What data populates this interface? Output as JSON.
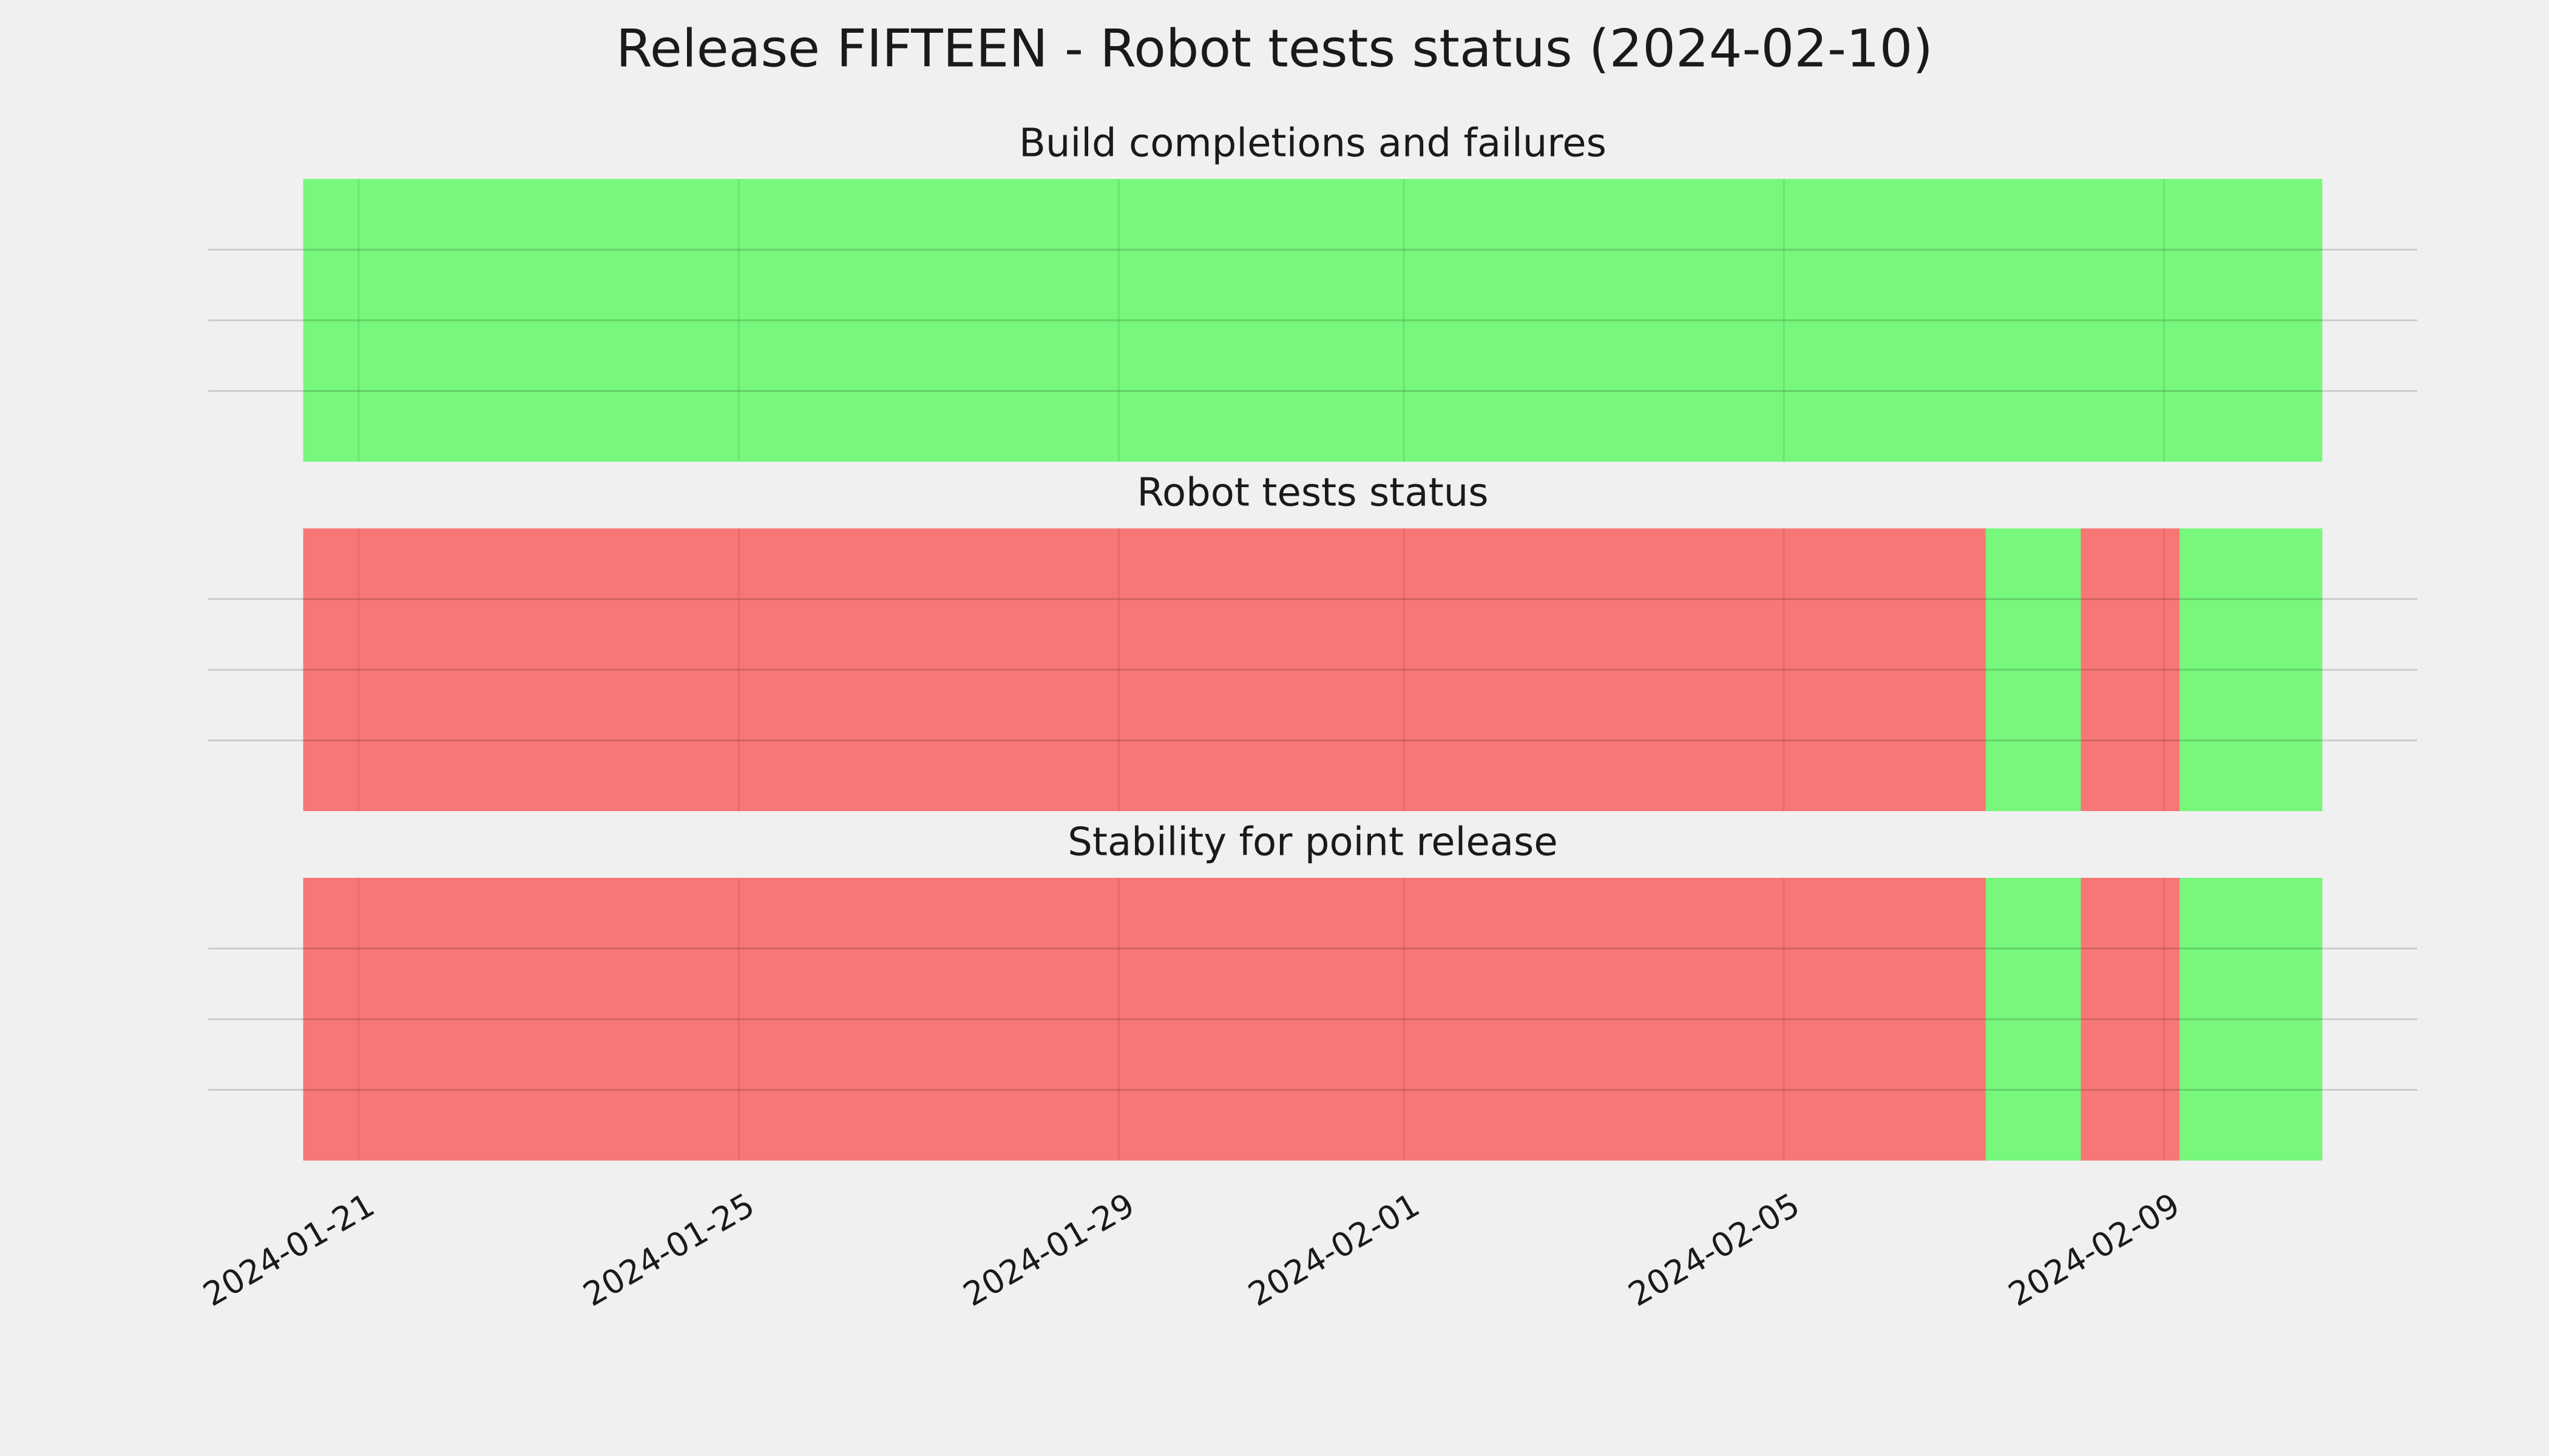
{
  "chart_data": {
    "type": "timeline",
    "title": "Release FIFTEEN - Robot tests status (2024-02-10)",
    "xlim": [
      "2024-01-19T10:00",
      "2024-02-11T16:00"
    ],
    "xticks": [
      "2024-01-21",
      "2024-01-25",
      "2024-01-29",
      "2024-02-01",
      "2024-02-05",
      "2024-02-09"
    ],
    "ylim": [
      0,
      1
    ],
    "yticks": [
      0.25,
      0.5,
      0.75
    ],
    "grid": true,
    "panels": [
      {
        "title": "Build completions and failures",
        "segments": [
          {
            "start": "2024-01-20T10:00",
            "end": "2024-02-10T16:00",
            "color": "#77f77b"
          }
        ]
      },
      {
        "title": "Robot tests status",
        "segments": [
          {
            "start": "2024-01-20T10:00",
            "end": "2024-02-07T03:00",
            "color": "#f77776"
          },
          {
            "start": "2024-02-07T03:00",
            "end": "2024-02-08T03:00",
            "color": "#77f77b"
          },
          {
            "start": "2024-02-08T03:00",
            "end": "2024-02-09T04:00",
            "color": "#f77776"
          },
          {
            "start": "2024-02-09T04:00",
            "end": "2024-02-10T16:00",
            "color": "#77f77b"
          }
        ]
      },
      {
        "title": "Stability for point release",
        "segments": [
          {
            "start": "2024-01-20T10:00",
            "end": "2024-02-07T03:00",
            "color": "#f77776"
          },
          {
            "start": "2024-02-07T03:00",
            "end": "2024-02-08T03:00",
            "color": "#77f77b"
          },
          {
            "start": "2024-02-08T03:00",
            "end": "2024-02-09T04:00",
            "color": "#f77776"
          },
          {
            "start": "2024-02-09T04:00",
            "end": "2024-02-10T16:00",
            "color": "#77f77b"
          }
        ]
      }
    ]
  }
}
